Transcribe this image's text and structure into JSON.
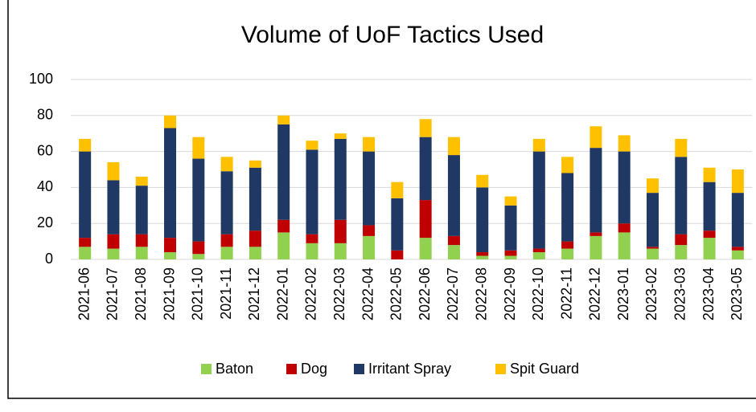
{
  "chart_data": {
    "type": "stacked_bar",
    "title": "Volume of UoF Tactics Used",
    "categories": [
      "2021-06",
      "2021-07",
      "2021-08",
      "2021-09",
      "2021-10",
      "2021-11",
      "2021-12",
      "2022-01",
      "2022-02",
      "2022-03",
      "2022-04",
      "2022-05",
      "2022-06",
      "2022-07",
      "2022-08",
      "2022-09",
      "2022-10",
      "2022-11",
      "2022-12",
      "2023-01",
      "2023-02",
      "2023-03",
      "2023-04",
      "2023-05"
    ],
    "series": [
      {
        "name": "Baton",
        "color": "#92d050",
        "values": [
          7,
          6,
          7,
          4,
          3,
          7,
          7,
          15,
          9,
          9,
          13,
          0,
          12,
          8,
          2,
          2,
          4,
          6,
          13,
          15,
          6,
          8,
          12,
          5
        ]
      },
      {
        "name": "Dog",
        "color": "#c00000",
        "values": [
          5,
          8,
          7,
          8,
          7,
          7,
          9,
          7,
          5,
          13,
          6,
          5,
          21,
          5,
          2,
          3,
          2,
          4,
          2,
          5,
          1,
          6,
          4,
          2
        ]
      },
      {
        "name": "Irritant Spray",
        "color": "#1f3864",
        "values": [
          48,
          30,
          27,
          61,
          46,
          35,
          35,
          53,
          47,
          45,
          41,
          29,
          35,
          45,
          36,
          25,
          54,
          38,
          47,
          40,
          30,
          43,
          27,
          30
        ]
      },
      {
        "name": "Spit Guard",
        "color": "#ffc000",
        "values": [
          7,
          10,
          5,
          7,
          12,
          8,
          4,
          5,
          5,
          3,
          8,
          9,
          10,
          10,
          7,
          5,
          7,
          9,
          12,
          9,
          8,
          10,
          8,
          13
        ]
      }
    ],
    "ylim": [
      0,
      100
    ],
    "yticks": [
      0,
      20,
      40,
      60,
      80,
      100
    ],
    "grid": true,
    "legend": "bottom"
  }
}
